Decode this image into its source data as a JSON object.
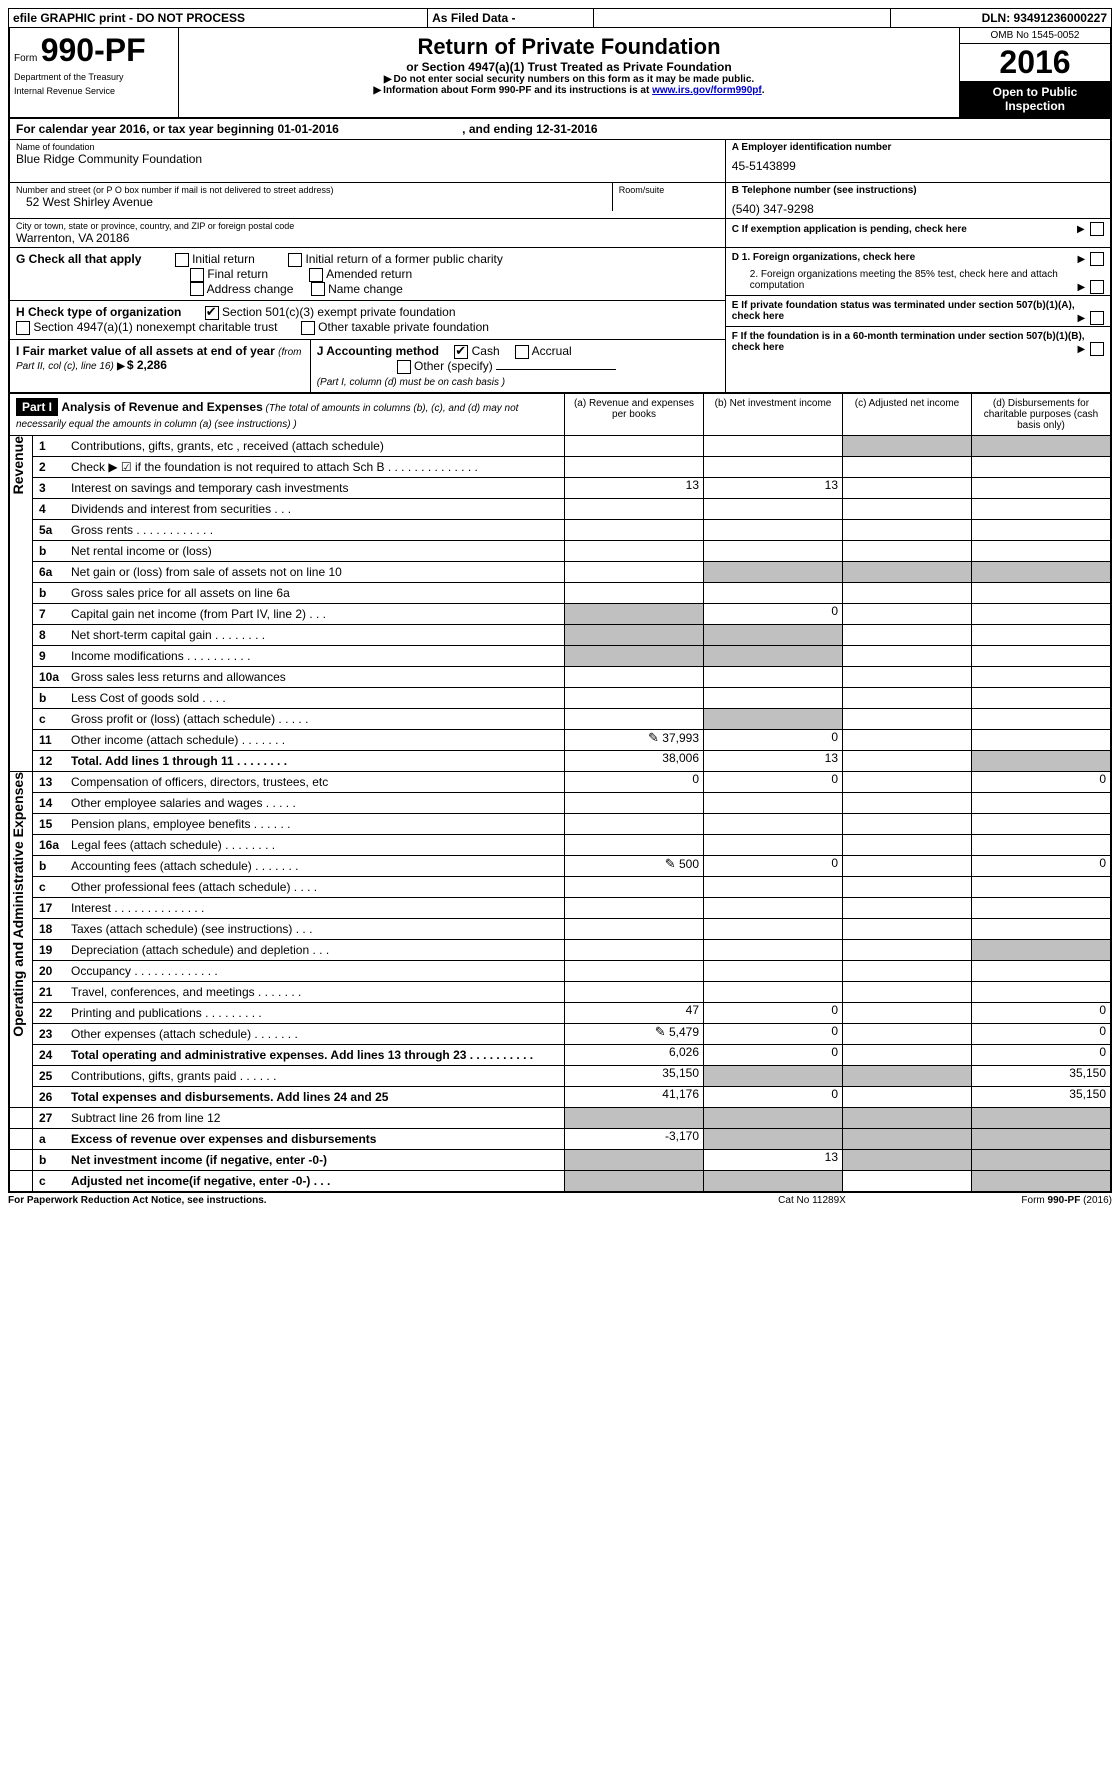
{
  "top_strip": {
    "left": "efile GRAPHIC print - DO NOT PROCESS",
    "mid": "As Filed Data -",
    "right": "DLN: 93491236000227"
  },
  "header": {
    "form_prefix": "Form",
    "form_number": "990-PF",
    "dept": "Department of the Treasury",
    "irs": "Internal Revenue Service",
    "title": "Return of Private Foundation",
    "subtitle": "or Section 4947(a)(1) Trust Treated as Private Foundation",
    "note1": "Do not enter social security numbers on this form as it may be made public.",
    "note2_pre": "Information about Form 990-PF and its instructions is at ",
    "note2_link": "www.irs.gov/form990pf",
    "note2_post": ".",
    "omb": "OMB No 1545-0052",
    "year": "2016",
    "open": "Open to Public Inspection"
  },
  "period": {
    "line_a": "For calendar year 2016, or tax year beginning 01-01-2016",
    "line_b": ", and ending 12-31-2016"
  },
  "info": {
    "name_label": "Name of foundation",
    "name": "Blue Ridge Community Foundation",
    "addr_label": "Number and street (or P O  box number if mail is not delivered to street address)",
    "room_label": "Room/suite",
    "addr": "52 West Shirley Avenue",
    "city_label": "City or town, state or province, country, and ZIP or foreign postal code",
    "city": "Warrenton, VA  20186",
    "A_label": "A Employer identification number",
    "A_val": "45-5143899",
    "B_label": "B Telephone number (see instructions)",
    "B_val": "(540) 347-9298",
    "C_label": "C If exemption application is pending, check here",
    "D1": "D 1. Foreign organizations, check here",
    "D2": "2. Foreign organizations meeting the 85% test, check here and attach computation",
    "E": "E  If private foundation status was terminated under section 507(b)(1)(A), check here",
    "F": "F  If the foundation is in a 60-month termination under section 507(b)(1)(B), check here"
  },
  "G": {
    "label": "G Check all that apply",
    "opts": [
      "Initial return",
      "Initial return of a former public charity",
      "Final return",
      "Amended return",
      "Address change",
      "Name change"
    ]
  },
  "H": {
    "label": "H Check type of organization",
    "o1": "Section 501(c)(3) exempt private foundation",
    "o2": "Section 4947(a)(1) nonexempt charitable trust",
    "o3": "Other taxable private foundation"
  },
  "I": {
    "label_a": "I Fair market value of all assets at end of year ",
    "label_b": "(from Part II, col  (c), line 16)",
    "arrow_val": "$  2,286"
  },
  "J": {
    "label": "J Accounting method",
    "cash": "Cash",
    "accrual": "Accrual",
    "other": "Other (specify)",
    "note": "(Part I, column (d) must be on cash basis )"
  },
  "part1": {
    "label": "Part I",
    "title": "Analysis of Revenue and Expenses",
    "title_note": " (The total of amounts in columns (b), (c), and (d) may not necessarily equal the amounts in column (a) (see instructions) )",
    "col_a": "(a)  Revenue and expenses per books",
    "col_b": "(b)  Net investment income",
    "col_c": "(c)  Adjusted net income",
    "col_d": "(d)  Disbursements for charitable purposes (cash basis only)"
  },
  "sections": {
    "revenue": "Revenue",
    "opex": "Operating and Administrative Expenses"
  },
  "lines": [
    {
      "n": "1",
      "t": "Contributions, gifts, grants, etc , received (attach schedule)",
      "a": "",
      "b": "",
      "c": "",
      "d": "",
      "gray_c": true,
      "gray_d": true
    },
    {
      "n": "2",
      "t": "Check ▶ ☑ if the foundation is not required to attach Sch  B . . . . . . . . . . . . . .",
      "a": "",
      "b": "",
      "c": "",
      "d": "",
      "blank_row": true
    },
    {
      "n": "3",
      "t": "Interest on savings and temporary cash investments",
      "a": "13",
      "b": "13",
      "c": "",
      "d": ""
    },
    {
      "n": "4",
      "t": "Dividends and interest from securities . . .",
      "a": "",
      "b": "",
      "c": "",
      "d": ""
    },
    {
      "n": "5a",
      "t": "Gross rents . . . . . . . . . . . .",
      "a": "",
      "b": "",
      "c": "",
      "d": ""
    },
    {
      "n": "b",
      "t": "Net rental income or (loss)  ",
      "a": "",
      "b": "",
      "c": "",
      "d": "",
      "underline": true,
      "blank_ab": true
    },
    {
      "n": "6a",
      "t": "Net gain or (loss) from sale of assets not on line 10",
      "a": "",
      "b": "",
      "c": "",
      "d": "",
      "gray_bcd": true
    },
    {
      "n": "b",
      "t": "Gross sales price for all assets on line 6a",
      "a": "",
      "b": "",
      "c": "",
      "d": "",
      "underline": true,
      "blank_ab": true
    },
    {
      "n": "7",
      "t": "Capital gain net income (from Part IV, line 2) . . .",
      "a": "",
      "b": "0",
      "c": "",
      "d": "",
      "gray_a": true
    },
    {
      "n": "8",
      "t": "Net short-term capital gain . . . . . . . .",
      "a": "",
      "b": "",
      "c": "",
      "d": "",
      "gray_ab": true
    },
    {
      "n": "9",
      "t": "Income modifications . . . . . . . . . .",
      "a": "",
      "b": "",
      "c": "",
      "d": "",
      "gray_ab": true
    },
    {
      "n": "10a",
      "t": "Gross sales less returns and allowances ",
      "a": "",
      "b": "",
      "c": "",
      "d": "",
      "underline": true,
      "blank_ab": true
    },
    {
      "n": "b",
      "t": "Less  Cost of goods sold . . . . ",
      "a": "",
      "b": "",
      "c": "",
      "d": "",
      "underline": true,
      "blank_ab": true
    },
    {
      "n": "c",
      "t": "Gross profit or (loss) (attach schedule) . . . . .",
      "a": "",
      "b": "",
      "c": "",
      "d": "",
      "gray_b": true
    },
    {
      "n": "11",
      "t": "Other income (attach schedule) . . . . . . .",
      "a": "37,993",
      "b": "0",
      "c": "",
      "d": "",
      "icon": true
    },
    {
      "n": "12",
      "t": "Total. Add lines 1 through 11 . . . . . . . .",
      "a": "38,006",
      "b": "13",
      "c": "",
      "d": "",
      "bold": true,
      "gray_d": true
    },
    {
      "n": "13",
      "t": "Compensation of officers, directors, trustees, etc",
      "a": "0",
      "b": "0",
      "c": "",
      "d": "0"
    },
    {
      "n": "14",
      "t": "Other employee salaries and wages . . . . .",
      "a": "",
      "b": "",
      "c": "",
      "d": ""
    },
    {
      "n": "15",
      "t": "Pension plans, employee benefits . . . . . .",
      "a": "",
      "b": "",
      "c": "",
      "d": ""
    },
    {
      "n": "16a",
      "t": "Legal fees (attach schedule) . . . . . . . .",
      "a": "",
      "b": "",
      "c": "",
      "d": ""
    },
    {
      "n": "b",
      "t": "Accounting fees (attach schedule) . . . . . . .",
      "a": "500",
      "b": "0",
      "c": "",
      "d": "0",
      "icon": true
    },
    {
      "n": "c",
      "t": "Other professional fees (attach schedule) . . . .",
      "a": "",
      "b": "",
      "c": "",
      "d": ""
    },
    {
      "n": "17",
      "t": "Interest . . . . . . . . . . . . . .",
      "a": "",
      "b": "",
      "c": "",
      "d": ""
    },
    {
      "n": "18",
      "t": "Taxes (attach schedule) (see instructions) . . .",
      "a": "",
      "b": "",
      "c": "",
      "d": ""
    },
    {
      "n": "19",
      "t": "Depreciation (attach schedule) and depletion . . .",
      "a": "",
      "b": "",
      "c": "",
      "d": "",
      "gray_d": true
    },
    {
      "n": "20",
      "t": "Occupancy . . . . . . . . . . . . .",
      "a": "",
      "b": "",
      "c": "",
      "d": ""
    },
    {
      "n": "21",
      "t": "Travel, conferences, and meetings . . . . . . .",
      "a": "",
      "b": "",
      "c": "",
      "d": ""
    },
    {
      "n": "22",
      "t": "Printing and publications . . . . . . . . .",
      "a": "47",
      "b": "0",
      "c": "",
      "d": "0"
    },
    {
      "n": "23",
      "t": "Other expenses (attach schedule) . . . . . . .",
      "a": "5,479",
      "b": "0",
      "c": "",
      "d": "0",
      "icon": true
    },
    {
      "n": "24",
      "t": "Total operating and administrative expenses. Add lines 13 through 23 . . . . . . . . . .",
      "a": "6,026",
      "b": "0",
      "c": "",
      "d": "0",
      "bold": true
    },
    {
      "n": "25",
      "t": "Contributions, gifts, grants paid . . . . . .",
      "a": "35,150",
      "b": "",
      "c": "",
      "d": "35,150",
      "gray_bc": true
    },
    {
      "n": "26",
      "t": "Total expenses and disbursements. Add lines 24 and 25",
      "a": "41,176",
      "b": "0",
      "c": "",
      "d": "35,150",
      "bold": true
    },
    {
      "n": "27",
      "t": "Subtract line 26 from line 12",
      "a": "",
      "b": "",
      "c": "",
      "d": "",
      "gray_all": true
    },
    {
      "n": "a",
      "t": "Excess of revenue over expenses and disbursements",
      "a": "-3,170",
      "b": "",
      "c": "",
      "d": "",
      "bold": true,
      "gray_bcd": true
    },
    {
      "n": "b",
      "t": "Net investment income (if negative, enter -0-)",
      "a": "",
      "b": "13",
      "c": "",
      "d": "",
      "bold": true,
      "gray_a": true,
      "gray_cd": true
    },
    {
      "n": "c",
      "t": "Adjusted net income(if negative, enter -0-) . . .",
      "a": "",
      "b": "",
      "c": "",
      "d": "",
      "bold": true,
      "gray_ab": true,
      "gray_d": true
    }
  ],
  "footer": {
    "left": "For Paperwork Reduction Act Notice, see instructions.",
    "mid": "Cat  No  11289X",
    "right": "Form 990-PF (2016)"
  },
  "colors": {
    "black": "#000000",
    "gray": "#c0c0c0",
    "link": "#0000cc"
  }
}
